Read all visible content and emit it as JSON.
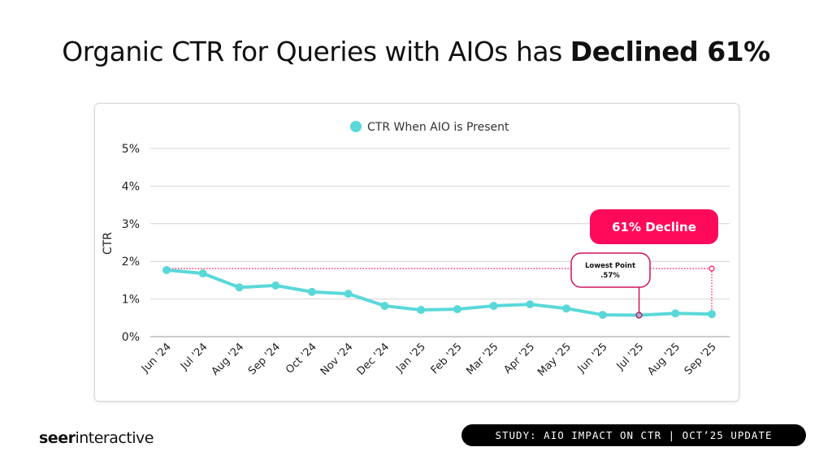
{
  "title": {
    "regular": "Organic CTR for Queries with AIOs has ",
    "bold": "Declined 61%"
  },
  "chart_data": {
    "type": "line",
    "ylabel": "CTR",
    "xlabel": "",
    "ylim": [
      0,
      5
    ],
    "yticks": [
      "0%",
      "1%",
      "2%",
      "3%",
      "4%",
      "5%"
    ],
    "grid": true,
    "legend": "top-center",
    "categories": [
      "Jun '24",
      "Jul '24",
      "Aug '24",
      "Sep '24",
      "Oct '24",
      "Nov '24",
      "Dec '24",
      "Jan '25",
      "Feb '25",
      "Mar '25",
      "Apr '25",
      "May '25",
      "Jun '25",
      "Jul '25",
      "Aug '25",
      "Sep '25"
    ],
    "series": [
      {
        "name": "CTR When AIO is Present",
        "color": "#5ad8d8",
        "values": [
          1.77,
          1.68,
          1.31,
          1.36,
          1.19,
          1.14,
          0.82,
          0.71,
          0.73,
          0.82,
          0.86,
          0.75,
          0.58,
          0.57,
          0.62,
          0.6
        ]
      }
    ],
    "annotations": {
      "decline_label": "61% Decline",
      "lowest_label": "Lowest Point",
      "lowest_value": ".57%",
      "lowest_index": 13,
      "reference_value": 1.81,
      "accent_color": "#ff0a5a"
    }
  },
  "footer": {
    "logo_bold": "seer",
    "logo_regular": "interactive",
    "badge": "STUDY: AIO IMPACT ON CTR | OCT’25 UPDATE"
  }
}
